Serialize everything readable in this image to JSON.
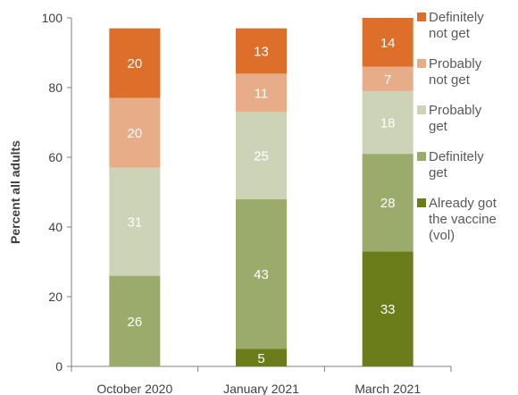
{
  "chart_data": {
    "type": "bar",
    "stacked": true,
    "title": "",
    "ylabel": "Percent all adults",
    "xlabel": "",
    "ylim": [
      0,
      100
    ],
    "yticks": [
      0,
      20,
      40,
      60,
      80,
      100
    ],
    "categories": [
      "October 2020",
      "January 2021",
      "March 2021"
    ],
    "legend_position": "right",
    "series": [
      {
        "name": "Already got the vaccine (vol)",
        "color": "#6b7c1b",
        "values": [
          0,
          5,
          33
        ],
        "labels": [
          "",
          "5",
          "33"
        ]
      },
      {
        "name": "Definitely get",
        "color": "#9bab6b",
        "values": [
          26,
          43,
          28
        ],
        "labels": [
          "26",
          "43",
          "28"
        ]
      },
      {
        "name": "Probably get",
        "color": "#ccd3b7",
        "values": [
          31,
          25,
          18
        ],
        "labels": [
          "31",
          "25",
          "18"
        ]
      },
      {
        "name": "Probably not get",
        "color": "#e6ad88",
        "values": [
          20,
          11,
          7
        ],
        "labels": [
          "20",
          "11",
          "7"
        ]
      },
      {
        "name": "Definitely not get",
        "color": "#dd6f2b",
        "values": [
          20,
          13,
          14
        ],
        "labels": [
          "20",
          "13",
          "14"
        ]
      }
    ],
    "legend": [
      {
        "series_index": 4,
        "lines": [
          "Definitely",
          "not get"
        ]
      },
      {
        "series_index": 3,
        "lines": [
          "Probably",
          "not get"
        ]
      },
      {
        "series_index": 2,
        "lines": [
          "Probably",
          "get"
        ]
      },
      {
        "series_index": 1,
        "lines": [
          "Definitely",
          "get"
        ]
      },
      {
        "series_index": 0,
        "lines": [
          "Already got",
          "the vaccine",
          "(vol)"
        ]
      }
    ]
  }
}
